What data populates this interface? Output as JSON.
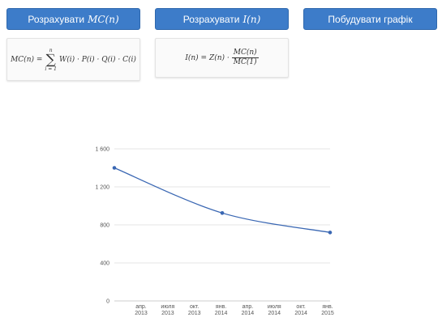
{
  "buttons": {
    "mc_label": "Розрахувати",
    "mc_math": "MC(n)",
    "index_label": "Розрахувати",
    "index_math": "I(n)",
    "plot_label": "Побудувати графік"
  },
  "formulas": {
    "mc": {
      "lhs": "MC(n) =",
      "sum_upper": "n",
      "sum_lower": "i = 1",
      "sum_symbol": "∑",
      "body": "W(i) · P(i) · Q(i) · C(i)"
    },
    "index": {
      "lhs": "I(n) = Z(n) ·",
      "numerator": "MC(n)",
      "denominator": "MC(1)"
    }
  },
  "colors": {
    "button": "#3d7cc9",
    "line": "#3a67b3",
    "grid": "#e6e6e6"
  },
  "chart_data": {
    "type": "line",
    "x": [
      "апр. 2013",
      "июля 2013",
      "окт. 2013",
      "янв. 2014",
      "апр. 2014",
      "июля 2014",
      "окт. 2014",
      "янв. 2015"
    ],
    "x_tick_lines": [
      [
        "апр.",
        "2013"
      ],
      [
        "июля",
        "2013"
      ],
      [
        "окт.",
        "2013"
      ],
      [
        "янв.",
        "2014"
      ],
      [
        "апр.",
        "2014"
      ],
      [
        "июля",
        "2014"
      ],
      [
        "окт.",
        "2014"
      ],
      [
        "янв.",
        "2015"
      ]
    ],
    "series": [
      {
        "points": [
          {
            "x": "2013-01-01",
            "y": 1400
          },
          {
            "x": "2014-01-01",
            "y": 925
          },
          {
            "x": "2015-01-01",
            "y": 720
          }
        ]
      }
    ],
    "ylim": [
      0,
      1600
    ],
    "yticks": [
      0,
      400,
      800,
      1200,
      1600
    ],
    "ytick_labels": [
      "0",
      "400",
      "800",
      "1 200",
      "1 600"
    ],
    "xlim": [
      "2013-01-01",
      "2015-01-01"
    ],
    "grid": true,
    "title": "",
    "xlabel": "",
    "ylabel": ""
  }
}
